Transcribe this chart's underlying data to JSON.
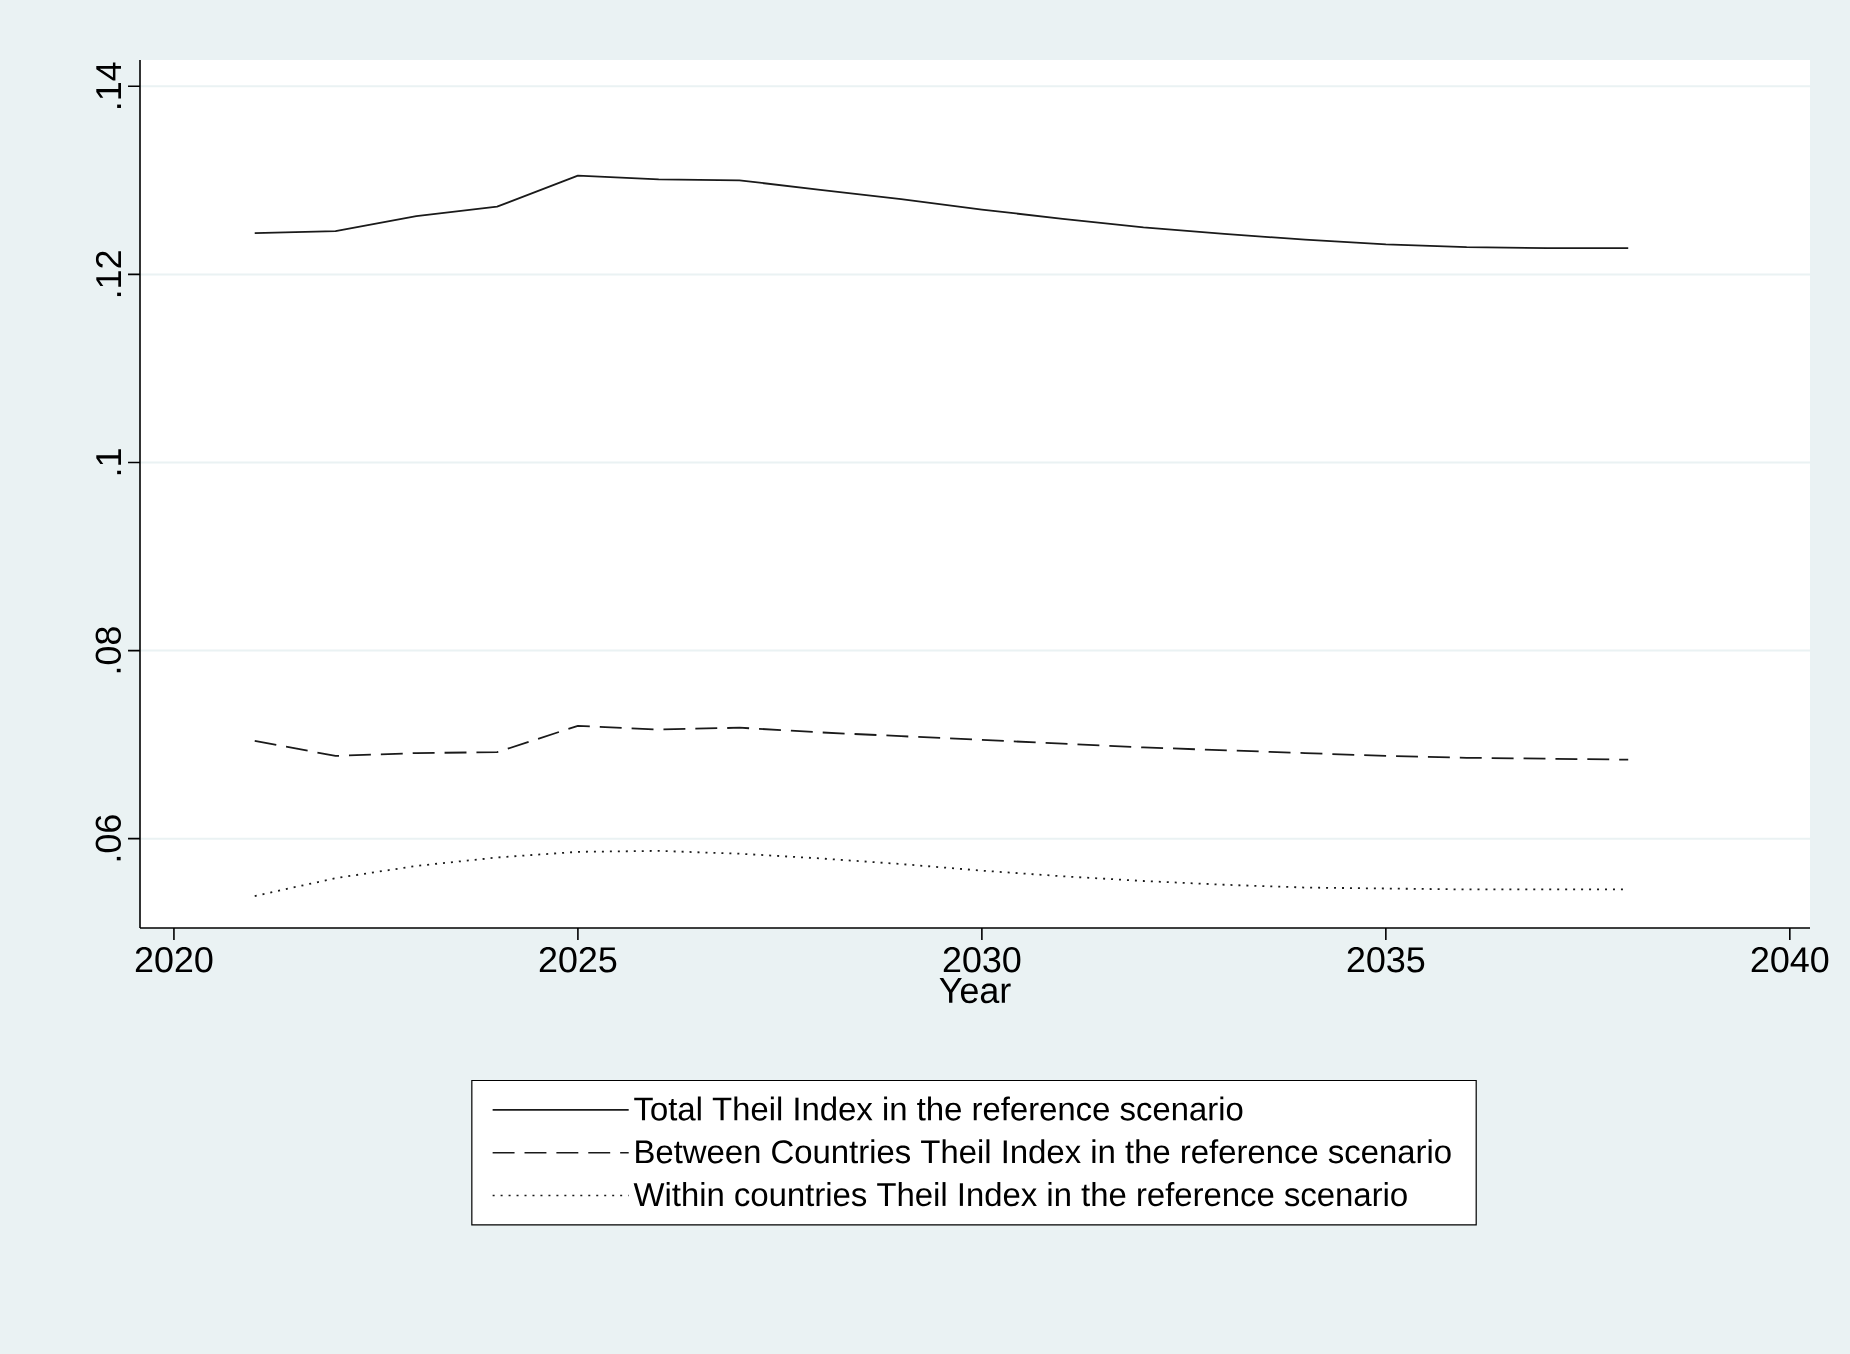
{
  "chart_data": {
    "type": "line",
    "xlabel": "Year",
    "x": [
      2021,
      2022,
      2023,
      2024,
      2025,
      2026,
      2027,
      2028,
      2029,
      2030,
      2031,
      2032,
      2033,
      2034,
      2035,
      2036,
      2037,
      2038
    ],
    "series": [
      {
        "name": "Total Theil Index in the reference scenario",
        "color": "#1a1a1a",
        "line_style": "solid",
        "values": [
          0.1244,
          0.1246,
          0.1262,
          0.1272,
          0.1305,
          0.1301,
          0.13,
          0.129,
          0.128,
          0.1269,
          0.1259,
          0.125,
          0.1243,
          0.1237,
          0.1232,
          0.1229,
          0.1228,
          0.1228
        ]
      },
      {
        "name": "Between Countries Theil Index in the reference scenario",
        "color": "#1a1a1a",
        "line_style": "dashed",
        "values": [
          0.0704,
          0.0688,
          0.0691,
          0.0692,
          0.072,
          0.0716,
          0.0718,
          0.0713,
          0.0709,
          0.0705,
          0.0701,
          0.0697,
          0.0694,
          0.0691,
          0.0688,
          0.0686,
          0.0685,
          0.0684
        ]
      },
      {
        "name": "Within countries Theil Index in the reference scenario",
        "color": "#1a1a1a",
        "line_style": "dotted",
        "values": [
          0.0539,
          0.0558,
          0.0571,
          0.058,
          0.0586,
          0.0587,
          0.0584,
          0.0579,
          0.0573,
          0.0566,
          0.056,
          0.0555,
          0.0551,
          0.0548,
          0.0547,
          0.0546,
          0.0546,
          0.0546
        ]
      }
    ],
    "xlim": [
      2019.58,
      2040.25
    ],
    "ylim": [
      0.0505,
      0.1428
    ],
    "xticks": [
      2020,
      2025,
      2030,
      2035,
      2040
    ],
    "yticks": [
      {
        "value": 0.06,
        "label": ".06"
      },
      {
        "value": 0.08,
        "label": ".08"
      },
      {
        "value": 0.1,
        "label": ".1"
      },
      {
        "value": 0.12,
        "label": ".12"
      },
      {
        "value": 0.14,
        "label": ".14"
      }
    ],
    "grid": "y",
    "legend": "bottom",
    "marker": "none"
  }
}
